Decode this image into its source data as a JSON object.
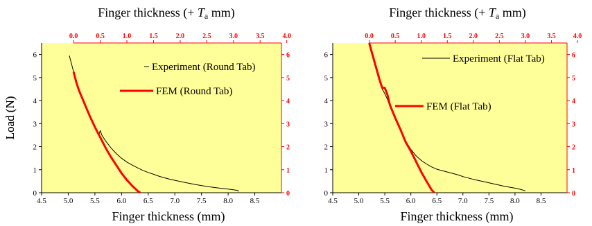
{
  "colors": {
    "plot_bg": "#ffff99",
    "experiment": "#000000",
    "fem": "#ff0000",
    "secondary_axis": "#ff0000"
  },
  "chart_data": [
    {
      "type": "line",
      "top_axis_title": {
        "main": "Finger thickness (+ ",
        "italic": "T",
        "sub": "a",
        "tail": "  mm)"
      },
      "xlabel": "Finger thickness (mm)",
      "ylabel": "Load (N)",
      "xlim": [
        4.5,
        9.0
      ],
      "ylim": [
        0,
        6.5
      ],
      "x_ticks": [
        "4.5",
        "5.0",
        "5.5",
        "6.0",
        "6.5",
        "7.0",
        "7.5",
        "8.0",
        "8.5"
      ],
      "y_ticks": [
        "0",
        "1",
        "2",
        "3",
        "4",
        "5",
        "6"
      ],
      "top_offset": 5.1,
      "top_ticks": [
        "0.0",
        "0.5",
        "1.0",
        "1.5",
        "2.0",
        "2.5",
        "3.0",
        "3.5",
        "4.0"
      ],
      "right_ticks": [
        "0",
        "1",
        "2",
        "3",
        "4",
        "5",
        "6"
      ],
      "series": [
        {
          "name": "Experiment (Round Tab)",
          "color": "#000000",
          "width": 1,
          "x": [
            5.02,
            5.06,
            5.1,
            5.15,
            5.2,
            5.25,
            5.3,
            5.35,
            5.4,
            5.45,
            5.5,
            5.55,
            5.58,
            5.6,
            5.63,
            5.7,
            5.8,
            5.9,
            6.0,
            6.1,
            6.2,
            6.3,
            6.4,
            6.5,
            6.6,
            6.7,
            6.8,
            6.9,
            7.0,
            7.2,
            7.4,
            7.6,
            7.8,
            8.0,
            8.1,
            8.18,
            8.2
          ],
          "y": [
            5.95,
            5.6,
            5.25,
            4.85,
            4.5,
            4.2,
            3.9,
            3.6,
            3.35,
            3.1,
            2.85,
            2.6,
            2.55,
            2.7,
            2.5,
            2.25,
            1.95,
            1.7,
            1.5,
            1.33,
            1.2,
            1.08,
            0.97,
            0.88,
            0.8,
            0.72,
            0.65,
            0.59,
            0.54,
            0.44,
            0.35,
            0.27,
            0.21,
            0.16,
            0.13,
            0.1,
            0.06
          ]
        },
        {
          "name": "FEM (Round Tab)",
          "color": "#ff0000",
          "width": 3,
          "x": [
            5.1,
            5.15,
            5.2,
            5.3,
            5.4,
            5.5,
            5.6,
            5.7,
            5.8,
            5.9,
            6.0,
            6.1,
            6.2,
            6.3,
            6.35
          ],
          "y": [
            5.25,
            4.8,
            4.45,
            3.9,
            3.35,
            2.85,
            2.4,
            1.95,
            1.55,
            1.2,
            0.85,
            0.55,
            0.3,
            0.08,
            0.0
          ]
        }
      ]
    },
    {
      "type": "line",
      "top_axis_title": {
        "main": "Finger thickness (+ ",
        "italic": "T",
        "sub": "a",
        "tail": " mm)"
      },
      "xlabel": "Finger thickness (mm)",
      "ylabel": "Load (N)",
      "xlim": [
        4.5,
        9.0
      ],
      "ylim": [
        0,
        6.5
      ],
      "x_ticks": [
        "4.5",
        "5.0",
        "5.5",
        "6.0",
        "6.5",
        "7.0",
        "7.5",
        "8.0",
        "8.5"
      ],
      "y_ticks": [
        "0",
        "1",
        "2",
        "3",
        "4",
        "5",
        "6"
      ],
      "top_offset": 5.2,
      "top_ticks": [
        "0.0",
        "0.5",
        "1.0",
        "1.5",
        "2.0",
        "2.5",
        "3.0",
        "3.5",
        "4.0"
      ],
      "right_ticks": [
        "0",
        "1",
        "2",
        "3",
        "4",
        "5",
        "6"
      ],
      "series": [
        {
          "name": "Experiment (Flat Tab)",
          "color": "#000000",
          "width": 1,
          "x": [
            5.2,
            5.25,
            5.3,
            5.35,
            5.4,
            5.45,
            5.5,
            5.55,
            5.6,
            5.7,
            5.8,
            5.9,
            6.0,
            6.1,
            6.2,
            6.3,
            6.4,
            6.5,
            6.6,
            6.7,
            6.8,
            6.9,
            7.0,
            7.2,
            7.4,
            7.6,
            7.8,
            8.0,
            8.1,
            8.2
          ],
          "y": [
            6.4,
            6.0,
            5.6,
            5.2,
            4.8,
            4.5,
            4.3,
            4.05,
            3.75,
            3.2,
            2.7,
            2.25,
            1.88,
            1.6,
            1.4,
            1.25,
            1.12,
            1.02,
            0.96,
            0.9,
            0.84,
            0.78,
            0.7,
            0.58,
            0.48,
            0.38,
            0.28,
            0.2,
            0.15,
            0.08
          ]
        },
        {
          "name": "FEM (Flat Tab)",
          "color": "#ff0000",
          "width": 3,
          "x": [
            5.2,
            5.3,
            5.4,
            5.45,
            5.5,
            5.55,
            5.6,
            5.7,
            5.8,
            5.9,
            6.0,
            6.1,
            6.2,
            6.3,
            6.4,
            6.45
          ],
          "y": [
            6.5,
            5.7,
            4.9,
            4.55,
            4.55,
            4.25,
            3.8,
            3.25,
            2.75,
            2.2,
            1.8,
            1.35,
            0.9,
            0.5,
            0.12,
            0.0
          ]
        }
      ]
    }
  ]
}
